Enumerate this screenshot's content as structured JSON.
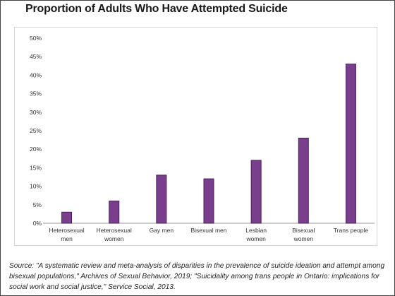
{
  "chart_data": {
    "type": "bar",
    "title": "Proportion of Adults Who Have Attempted Suicide",
    "categories": [
      [
        "Heterosexual",
        "men"
      ],
      [
        "Heterosexual",
        "women"
      ],
      [
        "Gay men"
      ],
      [
        "Bisexual men"
      ],
      [
        "Lesbian",
        "women"
      ],
      [
        "Bisexual",
        "women"
      ],
      [
        "Trans people"
      ]
    ],
    "values": [
      3,
      6,
      13,
      12,
      17,
      23,
      43
    ],
    "ylim": [
      0,
      50
    ],
    "yticks": [
      0,
      5,
      10,
      15,
      20,
      25,
      30,
      35,
      40,
      45,
      50
    ],
    "ytick_labels": [
      "0%",
      "5%",
      "10%",
      "15%",
      "20%",
      "25%",
      "30%",
      "35%",
      "40%",
      "45%",
      "50%"
    ],
    "xlabel": "",
    "ylabel": "",
    "grid": false,
    "bar_color": "#7a3f8c",
    "bar_edge_color": "#4a1f5a"
  },
  "source": "Source: \"A systematic review and meta-analysis of disparities in the prevalence of suicide ideation and attempt among bisexual populations,\" Archives of Sexual Behavior, 2019; \"Suicidality among trans people in Ontario: implications for social work and social justice,\" Service Social, 2013."
}
